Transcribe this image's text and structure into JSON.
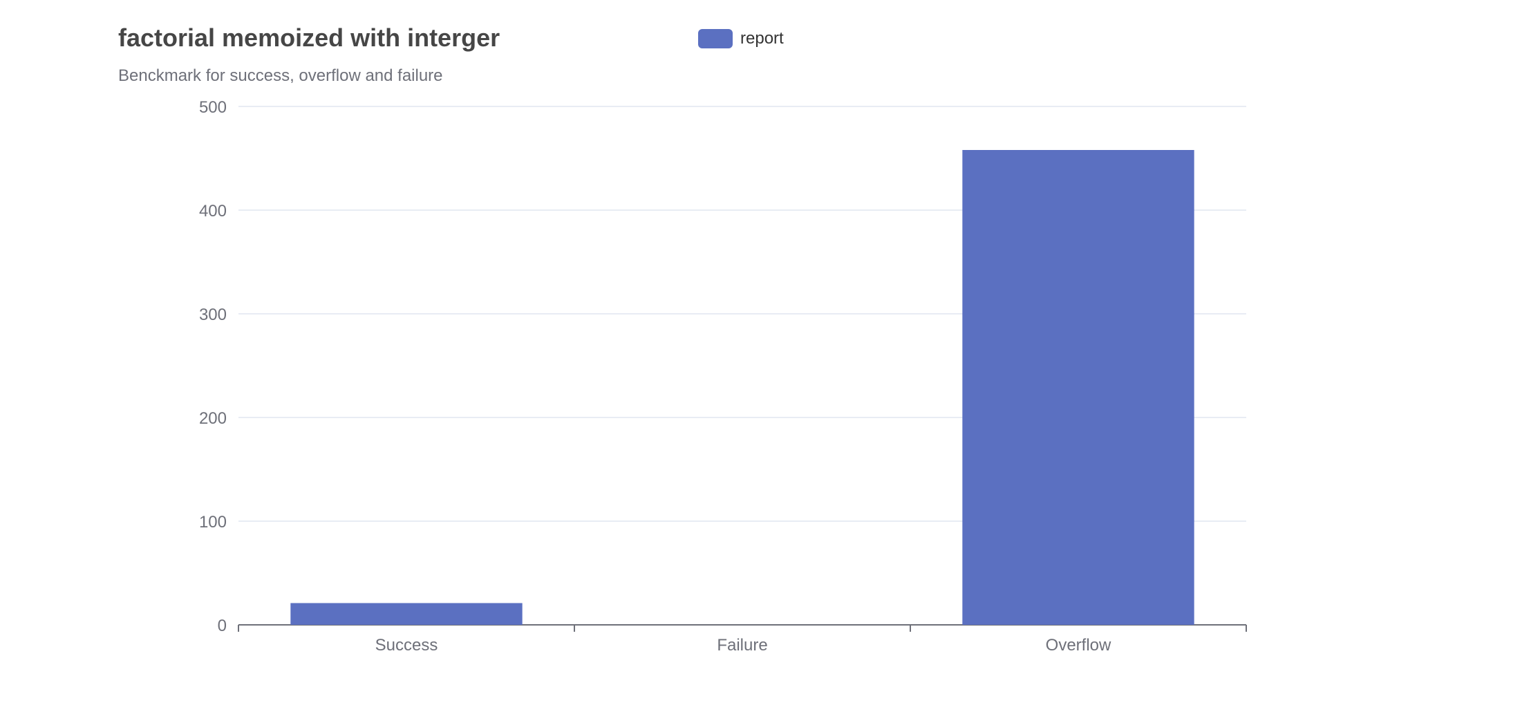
{
  "chart_data": {
    "type": "bar",
    "title": "factorial memoized with interger",
    "subtitle": "Benckmark for success, overflow and failure",
    "categories": [
      "Success",
      "Failure",
      "Overflow"
    ],
    "series": [
      {
        "name": "report",
        "values": [
          21,
          0,
          458
        ]
      }
    ],
    "ylim": [
      0,
      500
    ],
    "yticks": [
      0,
      100,
      200,
      300,
      400,
      500
    ],
    "grid": true,
    "legend": "top-center",
    "colors": {
      "bar": "#5b70c1",
      "grid": "#e0e6f1",
      "axis": "#6e7079",
      "text": "#6e7079"
    }
  }
}
